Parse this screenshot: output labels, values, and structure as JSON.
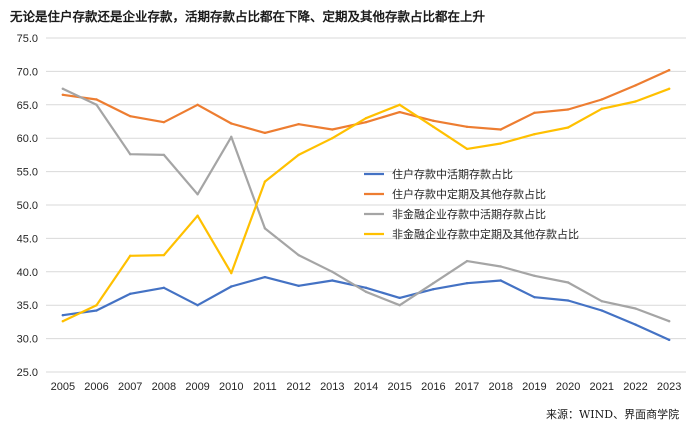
{
  "chart_data": {
    "type": "line",
    "title": "无论是住户存款还是企业存款，活期存款占比都在下降、定期及其他存款占比都在上升",
    "source": "来源：WIND、界面商学院",
    "xlabel": "",
    "ylabel": "",
    "x": [
      "2005",
      "2006",
      "2007",
      "2008",
      "2009",
      "2010",
      "2011",
      "2012",
      "2013",
      "2014",
      "2015",
      "2016",
      "2017",
      "2018",
      "2019",
      "2020",
      "2021",
      "2022",
      "2023"
    ],
    "ylim": [
      25.0,
      75.0
    ],
    "yticks": [
      "25.0",
      "30.0",
      "35.0",
      "40.0",
      "45.0",
      "50.0",
      "55.0",
      "60.0",
      "65.0",
      "70.0",
      "75.0"
    ],
    "grid": "horizontal",
    "legend_position": "center-right",
    "series": [
      {
        "name": "住户存款中活期存款占比",
        "color": "#4472c4",
        "values": [
          33.5,
          34.2,
          36.7,
          37.6,
          35.0,
          37.8,
          39.2,
          37.9,
          38.7,
          37.6,
          36.1,
          37.4,
          38.3,
          38.7,
          36.2,
          35.7,
          34.2,
          32.1,
          29.8
        ]
      },
      {
        "name": "住户存款中定期及其他存款占比",
        "color": "#ed7d31",
        "values": [
          66.5,
          65.8,
          63.3,
          62.4,
          65.0,
          62.2,
          60.8,
          62.1,
          61.3,
          62.4,
          63.9,
          62.6,
          61.7,
          61.3,
          63.8,
          64.3,
          65.8,
          67.9,
          70.2
        ]
      },
      {
        "name": "非金融企业存款中活期存款占比",
        "color": "#a5a5a5",
        "values": [
          67.4,
          65.0,
          57.6,
          57.5,
          51.6,
          60.2,
          46.5,
          42.5,
          40.0,
          37.0,
          35.0,
          38.3,
          41.6,
          40.8,
          39.4,
          38.4,
          35.6,
          34.5,
          32.6
        ]
      },
      {
        "name": "非金融企业存款中定期及其他存款占比",
        "color": "#ffc000",
        "values": [
          32.6,
          35.0,
          42.4,
          42.5,
          48.4,
          39.8,
          53.5,
          57.5,
          60.0,
          63.0,
          65.0,
          61.7,
          58.4,
          59.2,
          60.6,
          61.6,
          64.4,
          65.5,
          67.4
        ]
      }
    ]
  }
}
